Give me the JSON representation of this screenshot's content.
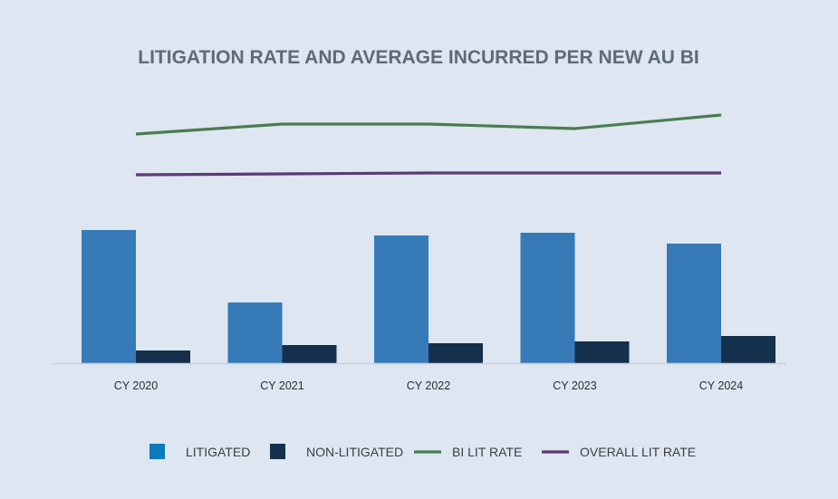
{
  "chart_data": {
    "type": "bar",
    "title": "LITIGATION RATE AND AVERAGE INCURRED PER NEW AU BI",
    "categories": [
      "CY 2020",
      "CY 2021",
      "CY 2022",
      "CY 2023",
      "CY 2024"
    ],
    "bar_series": [
      {
        "name": "LITIGATED",
        "values": [
          147,
          67,
          141,
          144,
          132
        ],
        "color": "#377ab8"
      },
      {
        "name": "NON-LITIGATED",
        "values": [
          14,
          20,
          22,
          24,
          30
        ],
        "color": "#14304c"
      }
    ],
    "line_series": [
      {
        "name": "BI LIT RATE",
        "values": [
          253,
          264,
          264,
          259,
          274
        ],
        "color": "#4a7c4f"
      },
      {
        "name": "OVERALL LIT RATE",
        "values": [
          208,
          209,
          210,
          210,
          210
        ],
        "color": "#5c3a75"
      }
    ],
    "ylim": [
      0,
      300
    ],
    "axis_color": "#c8d0da",
    "legend_position": "bottom",
    "legend": [
      {
        "label": "LITIGATED",
        "marker": "square",
        "color": "#0a7bbd"
      },
      {
        "label": "NON-LITIGATED",
        "marker": "square",
        "color": "#14304c"
      },
      {
        "label": "BI LIT RATE",
        "marker": "line",
        "color": "#4a7c4f"
      },
      {
        "label": "OVERALL LIT RATE",
        "marker": "line",
        "color": "#5c3a75"
      }
    ]
  }
}
